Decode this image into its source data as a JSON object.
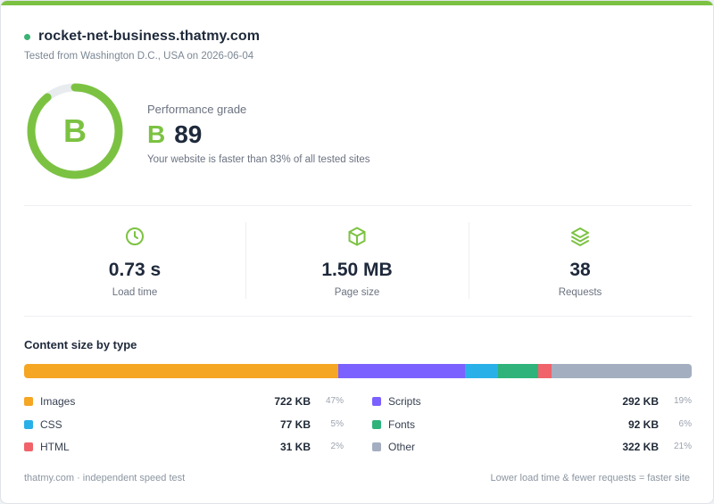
{
  "colors": {
    "accent": "#7cc242",
    "status_dot": "#3bb273",
    "gauge_track": "#e9ecef"
  },
  "site": {
    "name": "rocket-net-business.thatmy.com",
    "tested": "Tested from Washington D.C., USA on 2026-06-04"
  },
  "performance": {
    "label": "Performance grade",
    "grade": "B",
    "score": "89",
    "score_fraction": 0.89,
    "faster_text": "Your website is faster than 83% of all tested sites"
  },
  "metrics": [
    {
      "icon": "clock-icon",
      "value": "0.73 s",
      "label": "Load time"
    },
    {
      "icon": "box-icon",
      "value": "1.50 MB",
      "label": "Page size"
    },
    {
      "icon": "layers-icon",
      "value": "38",
      "label": "Requests"
    }
  ],
  "content": {
    "title": "Content size by type",
    "items": [
      {
        "label": "Images",
        "size": "722 KB",
        "pct": "47%",
        "share": 47,
        "color": "#f5a623"
      },
      {
        "label": "Scripts",
        "size": "292 KB",
        "pct": "19%",
        "share": 19,
        "color": "#7b61ff"
      },
      {
        "label": "CSS",
        "size": "77 KB",
        "pct": "5%",
        "share": 5,
        "color": "#2ab0e8"
      },
      {
        "label": "Fonts",
        "size": "92 KB",
        "pct": "6%",
        "share": 6,
        "color": "#2fb37a"
      },
      {
        "label": "HTML",
        "size": "31 KB",
        "pct": "2%",
        "share": 2,
        "color": "#f0636a"
      },
      {
        "label": "Other",
        "size": "322 KB",
        "pct": "21%",
        "share": 21,
        "color": "#a3afc0"
      }
    ]
  },
  "footer": {
    "left": "thatmy.com · independent speed test",
    "right": "Lower load time & fewer requests = faster site"
  }
}
